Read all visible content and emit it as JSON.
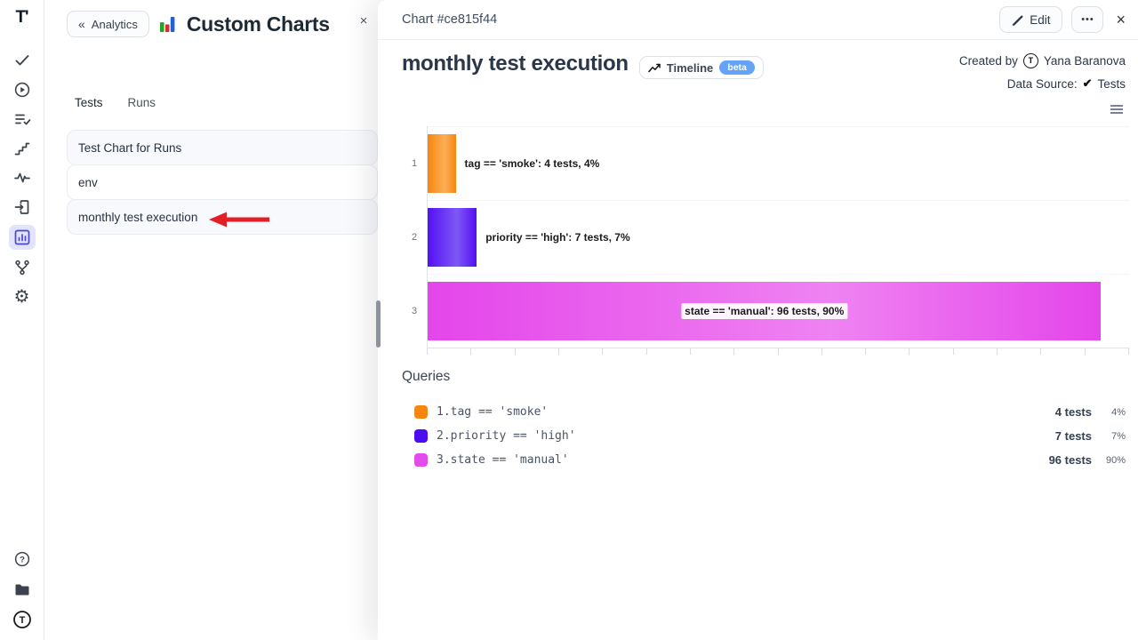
{
  "rail": {
    "logo": "T'",
    "items": [
      "tests",
      "runs",
      "test-plans",
      "milestones",
      "pulse",
      "import",
      "analytics",
      "branches",
      "settings"
    ],
    "active_item": "analytics",
    "active_bg": "#e1e4fb",
    "active_icon_color": "#4b47d6",
    "bottom_items": [
      "help",
      "projects",
      "account"
    ]
  },
  "left_panel": {
    "back_label": "Analytics",
    "title": "Custom Charts",
    "close_glyph": "×",
    "tabs": [
      "Tests",
      "Runs"
    ],
    "items": [
      "Test Chart for Runs",
      "env",
      "monthly test execution"
    ],
    "annotation_arrow_color": "#e31e25"
  },
  "drawer": {
    "header": {
      "title": "Chart #ce815f44",
      "edit_label": "Edit",
      "more_label": "•••",
      "close_glyph": "×"
    },
    "chart_title": "monthly test execution",
    "timeline_label": "Timeline",
    "beta_label": "beta",
    "created_by_label": "Created by",
    "created_by_avatar": "T",
    "created_by_name": "Yana Baranova",
    "data_source_label": "Data Source:",
    "data_source_check": "✔",
    "data_source_value": "Tests"
  },
  "chart_data": {
    "type": "bar",
    "orientation": "horizontal",
    "title": "monthly test execution",
    "categories": [
      "1",
      "2",
      "3"
    ],
    "series": [
      {
        "name": "tag == 'smoke'",
        "tests": 4,
        "percent": 4,
        "color": "#f6860e",
        "color_light": "#fcae57",
        "label": "tag == 'smoke': 4 tests, 4%"
      },
      {
        "name": "priority == 'high'",
        "tests": 7,
        "percent": 7,
        "color": "#5410f2",
        "color_light": "#7e58f6",
        "label": "priority == 'high': 7 tests, 7%"
      },
      {
        "name": "state == 'manual'",
        "tests": 96,
        "percent": 90,
        "color": "#e445ea",
        "color_light": "#ef83f2",
        "label": "state == 'manual': 96 tests, 90%"
      }
    ],
    "xlim": [
      0,
      100
    ],
    "x_ticks": 17,
    "grid": "row-separators",
    "legend_position": "bottom"
  },
  "queries": {
    "title": "Queries",
    "items": [
      {
        "num": "1.",
        "query": "tag == 'smoke'",
        "tests": "4 tests",
        "percent": "4%",
        "color": "#f6860e"
      },
      {
        "num": "2.",
        "query": "priority == 'high'",
        "tests": "7 tests",
        "percent": "7%",
        "color": "#4d0df2"
      },
      {
        "num": "3.",
        "query": "state == 'manual'",
        "tests": "96 tests",
        "percent": "90%",
        "color": "#e54aea"
      }
    ]
  }
}
